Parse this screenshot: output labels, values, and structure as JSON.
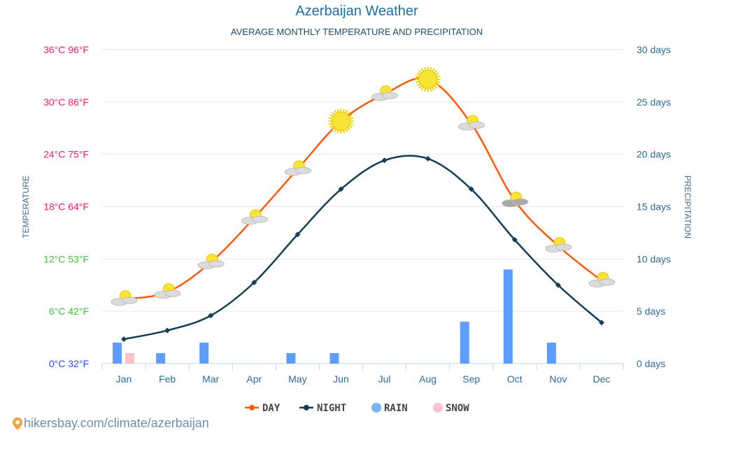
{
  "title": "Azerbaijan Weather",
  "subtitle": "AVERAGE MONTHLY TEMPERATURE AND PRECIPITATION",
  "source": "hikersbay.com/climate/azerbaijan",
  "chart_data": {
    "type": "line",
    "categories": [
      "Jan",
      "Feb",
      "Mar",
      "Apr",
      "May",
      "Jun",
      "Jul",
      "Aug",
      "Sep",
      "Oct",
      "Nov",
      "Dec"
    ],
    "ylabel": "TEMPERATURE",
    "y2label": "PRECIPITATION",
    "ylim": [
      0,
      36
    ],
    "y2lim": [
      0,
      30
    ],
    "yticks": [
      "0°C 32°F",
      "6°C 42°F",
      "12°C 53°F",
      "18°C 64°F",
      "24°C 75°F",
      "30°C 86°F",
      "36°C 96°F"
    ],
    "y2ticks": [
      "0 days",
      "5 days",
      "10 days",
      "15 days",
      "20 days",
      "25 days",
      "30 days"
    ],
    "grid": true,
    "legend_position": "bottom",
    "series": [
      {
        "name": "DAY",
        "type": "line",
        "color": "#ff5a0a",
        "values": [
          7.4,
          8.2,
          11.6,
          16.7,
          22.3,
          27.8,
          30.9,
          32.6,
          27.5,
          18.7,
          13.5,
          9.5
        ]
      },
      {
        "name": "NIGHT",
        "type": "line",
        "color": "#143d56",
        "values": [
          2.8,
          3.8,
          5.5,
          9.3,
          14.8,
          20.0,
          23.3,
          23.5,
          20.0,
          14.2,
          9.0,
          4.7
        ]
      },
      {
        "name": "RAIN",
        "type": "bar",
        "axis": "right",
        "color": "#5c9dff",
        "values": [
          2,
          1,
          2,
          0,
          1,
          1,
          0,
          0,
          4,
          9,
          2,
          0
        ]
      },
      {
        "name": "SNOW",
        "type": "bar",
        "axis": "right",
        "color": "#ffc0cb",
        "values": [
          1,
          0,
          0,
          0,
          0,
          0,
          0,
          0,
          0,
          0,
          0,
          0
        ]
      }
    ],
    "weather_icons": [
      "partly-cloudy",
      "partly-cloudy",
      "partly-cloudy",
      "partly-cloudy",
      "partly-cloudy",
      "sunny",
      "partly-cloudy",
      "sunny",
      "partly-cloudy",
      "cloudy",
      "partly-cloudy",
      "partly-cloudy"
    ],
    "ytick_colors": [
      "#1f4cff",
      "#3fbf3f",
      "#3fbf3f",
      "#ff1a66",
      "#ff1a66",
      "#ff1a66",
      "#ff1a66"
    ],
    "y2tick_color": "#2a6d9a"
  }
}
